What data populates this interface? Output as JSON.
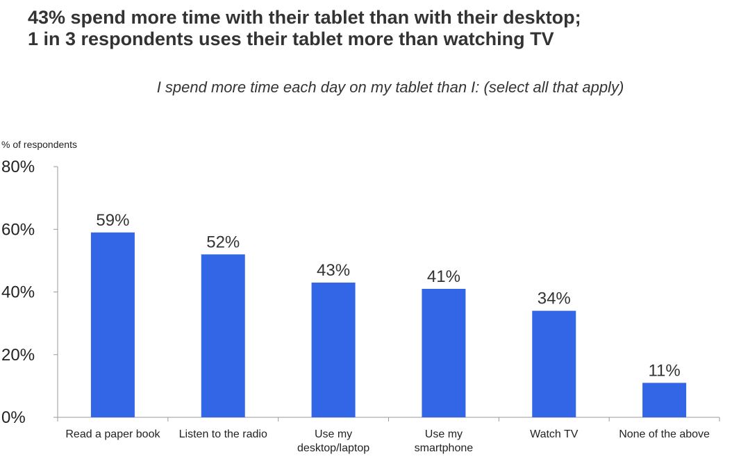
{
  "header": {
    "title_line1": "43% spend more time with their tablet than with their desktop;",
    "title_line2": "1 in 3 respondents uses their tablet more than watching TV"
  },
  "chart_data": {
    "type": "bar",
    "title": "I spend more time each day on my tablet than I: (select all that apply)",
    "ylabel": "% of respondents",
    "xlabel": "",
    "ylim": [
      0,
      80
    ],
    "yticks": [
      0,
      20,
      40,
      60,
      80
    ],
    "ytick_labels": [
      "0%",
      "20%",
      "40%",
      "60%",
      "80%"
    ],
    "categories": [
      [
        "Read a paper book"
      ],
      [
        "Listen to the radio"
      ],
      [
        "Use my",
        "desktop/laptop"
      ],
      [
        "Use my",
        "smartphone"
      ],
      [
        "Watch TV"
      ],
      [
        "None of the above"
      ]
    ],
    "values": [
      59,
      52,
      43,
      41,
      34,
      11
    ],
    "value_labels": [
      "59%",
      "52%",
      "43%",
      "41%",
      "34%",
      "11%"
    ],
    "bar_color": "#3366E6",
    "grid": false,
    "legend": "none"
  }
}
